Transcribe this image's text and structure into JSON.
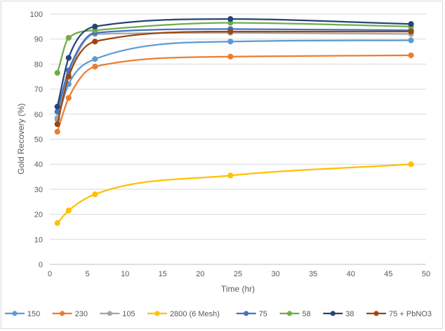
{
  "chart_data": {
    "type": "line",
    "title": "",
    "xlabel": "Time (hr)",
    "ylabel": "Gold Recovery (%)",
    "xlim": [
      0,
      50
    ],
    "ylim": [
      0,
      100
    ],
    "xticks": [
      0,
      5,
      10,
      15,
      20,
      25,
      30,
      35,
      40,
      45,
      50
    ],
    "yticks": [
      0,
      10,
      20,
      30,
      40,
      50,
      60,
      70,
      80,
      90,
      100
    ],
    "grid": "horizontal",
    "legend_position": "bottom",
    "x": [
      1,
      2.5,
      6,
      24,
      48
    ],
    "series": [
      {
        "name": "150",
        "color": "#5B9BD5",
        "values": [
          58,
          72,
          82,
          89,
          89.5
        ]
      },
      {
        "name": "230",
        "color": "#ED7D31",
        "values": [
          53,
          66.5,
          79,
          83,
          83.5
        ]
      },
      {
        "name": "105",
        "color": "#A5A5A5",
        "values": [
          58.5,
          76,
          92,
          92.5,
          92
        ]
      },
      {
        "name": "2800 (6 Mesh)",
        "color": "#FFC000",
        "values": [
          16.5,
          21.5,
          28,
          35.5,
          40
        ]
      },
      {
        "name": "75",
        "color": "#4472C4",
        "values": [
          61,
          77.5,
          92.5,
          94,
          93.5
        ]
      },
      {
        "name": "58",
        "color": "#70AD47",
        "values": [
          76.5,
          90.5,
          93.5,
          96.5,
          95
        ]
      },
      {
        "name": "38",
        "color": "#264478",
        "values": [
          63,
          82.5,
          95,
          98,
          96
        ]
      },
      {
        "name": "75 + PbNO3",
        "color": "#9E480E",
        "values": [
          56,
          75,
          89,
          93,
          93
        ]
      }
    ]
  }
}
